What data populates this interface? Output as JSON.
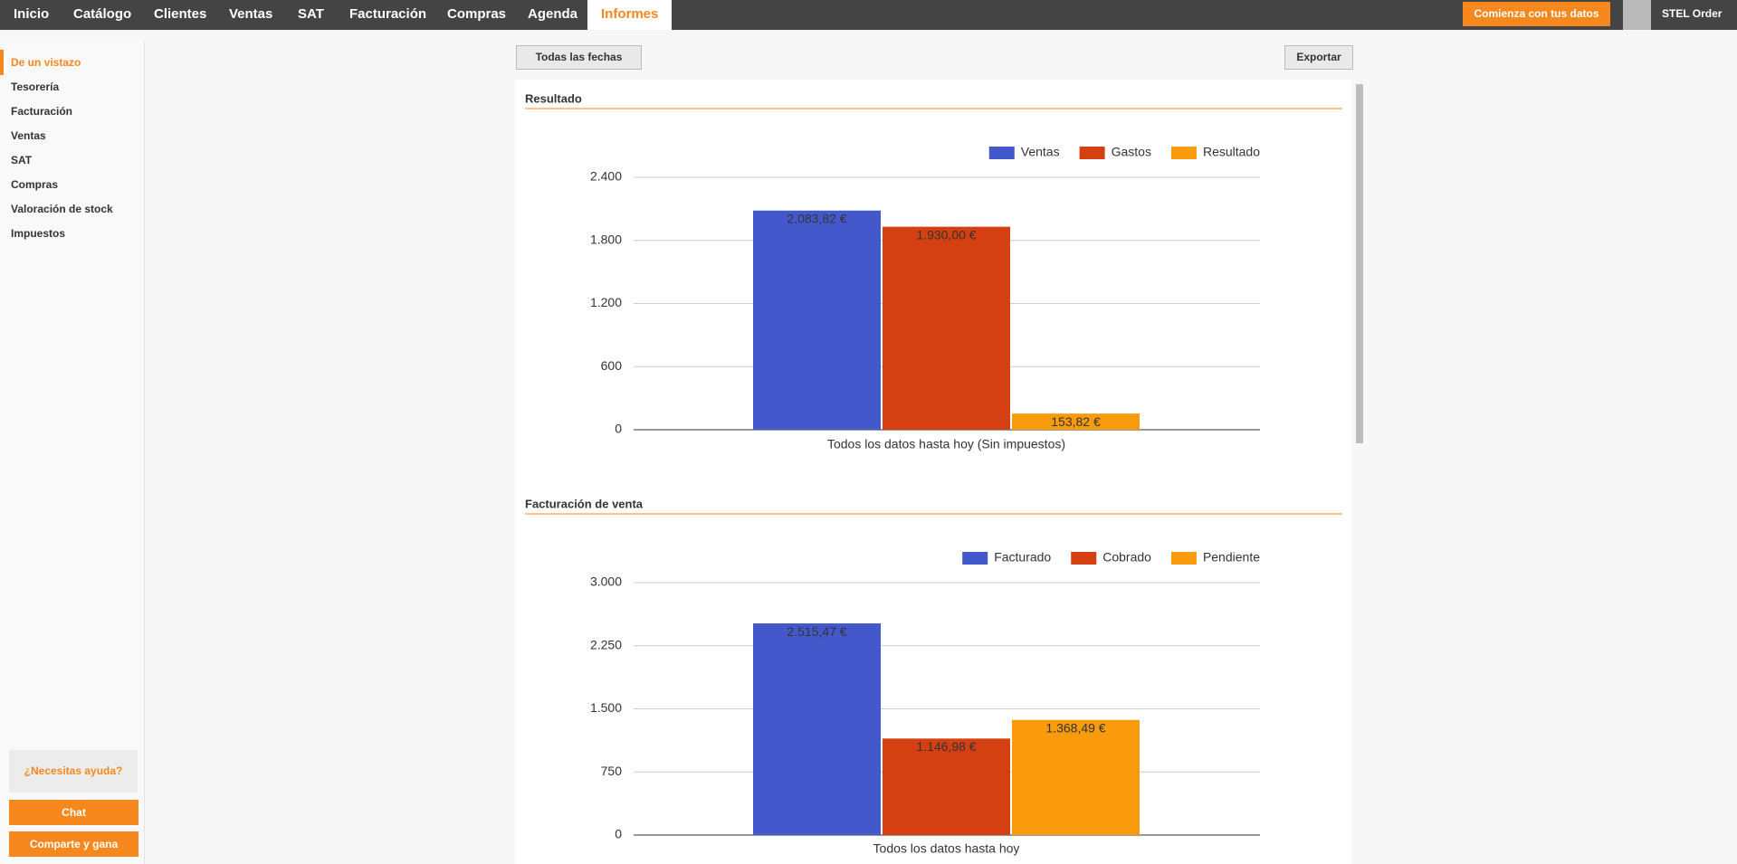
{
  "nav": {
    "items": [
      "Inicio",
      "Catálogo",
      "Clientes",
      "Ventas",
      "SAT",
      "Facturación",
      "Compras",
      "Agenda",
      "Informes"
    ],
    "active": 8,
    "cta": "Comienza con tus datos",
    "user": "STEL Order"
  },
  "sidebar": {
    "items": [
      "De un vistazo",
      "Tesorería",
      "Facturación",
      "Ventas",
      "SAT",
      "Compras",
      "Valoración de stock",
      "Impuestos"
    ],
    "active": 0,
    "help": "¿Necesitas ayuda?",
    "chat": "Chat",
    "share": "Comparte y gana"
  },
  "toolbar": {
    "date_filter": "Todas las fechas",
    "export": "Exportar"
  },
  "chart_data": [
    {
      "type": "bar",
      "title": "Resultado",
      "categories": [
        "Todos los datos hasta hoy (Sin impuestos)"
      ],
      "series": [
        {
          "name": "Ventas",
          "color": "#4359cb",
          "label_color": "#ffffff",
          "values": [
            2083.82
          ],
          "value_labels": [
            "2.083,82 €"
          ]
        },
        {
          "name": "Gastos",
          "color": "#d44011",
          "label_color": "#ffffff",
          "values": [
            1930
          ],
          "value_labels": [
            "1.930,00 €"
          ]
        },
        {
          "name": "Resultado",
          "color": "#f99b0b",
          "label_color": "#333333",
          "values": [
            153.82
          ],
          "value_labels": [
            "153,82 €"
          ]
        }
      ],
      "ylim": [
        0,
        2400
      ],
      "yticks": [
        0,
        600,
        {
          "value": 1200,
          "label": "1.200"
        },
        {
          "value": 1800,
          "label": "1.800"
        },
        {
          "value": 2400,
          "label": "2.400"
        }
      ],
      "grid": true,
      "legend": "top-right"
    },
    {
      "type": "bar",
      "title": "Facturación de venta",
      "categories": [
        "Todos los datos hasta hoy"
      ],
      "series": [
        {
          "name": "Facturado",
          "color": "#4359cb",
          "label_color": "#ffffff",
          "values": [
            2515.47
          ],
          "value_labels": [
            "2.515,47 €"
          ]
        },
        {
          "name": "Cobrado",
          "color": "#d44011",
          "label_color": "#ffffff",
          "values": [
            1146.98
          ],
          "value_labels": [
            "1.146,98 €"
          ]
        },
        {
          "name": "Pendiente",
          "color": "#f99b0b",
          "label_color": "#333333",
          "values": [
            1368.49
          ],
          "value_labels": [
            "1.368,49 €"
          ]
        }
      ],
      "ylim": [
        0,
        3000
      ],
      "yticks": [
        0,
        750,
        {
          "value": 1500,
          "label": "1.500"
        },
        {
          "value": 2250,
          "label": "2.250"
        },
        {
          "value": 3000,
          "label": "3.000"
        }
      ],
      "grid": true,
      "legend": "top-right"
    }
  ]
}
